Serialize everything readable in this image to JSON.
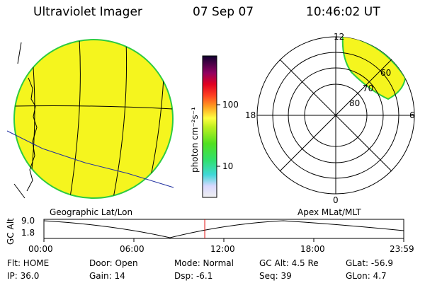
{
  "header": {
    "title": "Ultraviolet Imager",
    "date": "07 Sep 07",
    "time": "10:46:02 UT"
  },
  "colorbar": {
    "unit_label": "photon cm⁻²s⁻¹",
    "ticks": [
      "100",
      "10"
    ]
  },
  "left_panel": {
    "caption": "Geographic Lat/Lon"
  },
  "right_panel": {
    "caption": "Apex MLat/MLT",
    "mlt_labels": {
      "top": "12",
      "left": "18",
      "right": "6",
      "bottom": "0"
    },
    "mlat_labels": [
      "80",
      "70",
      "60"
    ]
  },
  "altitude_plot": {
    "ylabel": "GC Alt",
    "yticks": [
      "9.0",
      "1.8"
    ],
    "xticks": [
      "00:00",
      "06:00",
      "12:00",
      "18:00",
      "23:59"
    ],
    "current_time_fraction": 0.447,
    "line_color": "#000000",
    "marker_color": "#e00000"
  },
  "status": {
    "flt": "Flt: HOME",
    "ip": "IP: 36.0",
    "door": "Door: Open",
    "gain": "Gain: 14",
    "mode": "Mode: Normal",
    "dsp": "Dsp:   -6.1",
    "gcalt": "GC Alt: 4.5 Re",
    "seq": "Seq: 39",
    "glat": "GLat:  -56.9",
    "glon": "GLon:   4.7"
  },
  "colors": {
    "disk_fill": "#f5f51e",
    "disk_edge": "#2ecc40"
  }
}
